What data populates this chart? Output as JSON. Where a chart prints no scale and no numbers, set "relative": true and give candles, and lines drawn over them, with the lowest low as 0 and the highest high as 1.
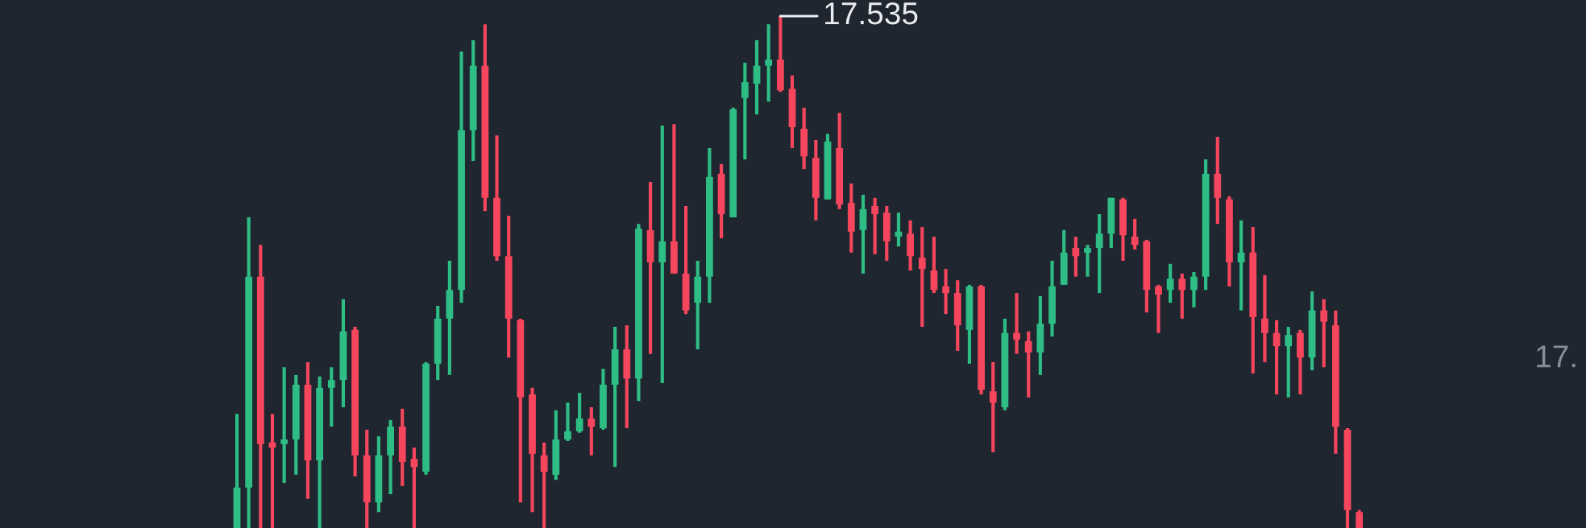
{
  "chart_data": {
    "type": "candlestick",
    "relative": true,
    "categories": [
      null,
      null,
      null,
      null,
      null,
      null,
      null,
      null,
      null,
      null,
      null,
      null,
      null,
      null,
      null,
      null,
      null,
      null,
      null,
      null,
      null,
      null,
      null,
      null,
      null,
      null,
      null,
      null,
      null,
      null,
      null,
      null,
      null,
      null,
      null,
      null,
      null,
      null,
      null,
      null,
      null,
      null,
      null,
      null,
      null,
      null,
      null,
      null,
      null,
      null,
      null,
      null,
      null,
      null,
      null,
      null,
      null,
      null,
      null,
      null,
      null,
      null,
      null,
      null,
      null,
      null,
      null,
      null,
      null,
      null,
      null,
      null,
      null,
      null,
      null,
      null,
      null,
      null,
      null,
      null,
      null,
      null,
      null,
      null,
      null,
      null,
      null,
      null,
      null,
      null,
      null,
      null,
      null,
      null,
      null,
      null
    ],
    "colors": [
      "#2ebd85",
      "#2ebd85",
      "#f6465d",
      "#f6465d",
      "#2ebd85",
      "#2ebd85",
      "#f6465d",
      "#2ebd85",
      "#2ebd85",
      "#2ebd85",
      "#f6465d",
      "#f6465d",
      "#2ebd85",
      "#2ebd85",
      "#f6465d",
      "#f6465d",
      "#2ebd85",
      "#2ebd85",
      "#2ebd85",
      "#2ebd85",
      "#2ebd85",
      "#f6465d",
      "#f6465d",
      "#f6465d",
      "#f6465d",
      "#f6465d",
      "#f6465d",
      "#2ebd85",
      "#2ebd85",
      "#2ebd85",
      "#f6465d",
      "#2ebd85",
      "#2ebd85",
      "#f6465d",
      "#2ebd85",
      "#f6465d",
      "#2ebd85",
      "#f6465d",
      "#f6465d",
      "#2ebd85",
      "#2ebd85",
      "#f6465d",
      "#2ebd85",
      "#2ebd85",
      "#2ebd85",
      "#2ebd85",
      "#f6465d",
      "#f6465d",
      "#f6465d",
      "#f6465d",
      "#2ebd85",
      "#f6465d",
      "#f6465d",
      "#2ebd85",
      "#f6465d",
      "#f6465d",
      "#2ebd85",
      "#f6465d",
      "#f6465d",
      "#f6465d",
      "#f6465d",
      "#f6465d",
      "#2ebd85",
      "#f6465d",
      "#f6465d",
      "#2ebd85",
      "#f6465d",
      "#f6465d",
      "#2ebd85",
      "#2ebd85",
      "#2ebd85",
      "#f6465d",
      "#2ebd85",
      "#2ebd85",
      "#2ebd85",
      "#f6465d",
      "#f6465d",
      "#f6465d",
      "#f6465d",
      "#2ebd85",
      "#f6465d",
      "#2ebd85",
      "#2ebd85",
      "#f6465d",
      "#f6465d",
      "#2ebd85",
      "#f6465d",
      "#f6465d",
      "#f6465d",
      "#2ebd85",
      "#f6465d",
      "#2ebd85",
      "#f6465d",
      "#f6465d",
      "#f6465d",
      "#f6465d"
    ],
    "ohlc": [
      [
        0,
        0.223,
        0,
        0.079
      ],
      [
        0.079,
        0.607,
        0,
        0.491
      ],
      [
        0.491,
        0.553,
        0,
        0.164
      ],
      [
        0.167,
        0.223,
        0,
        0.157
      ],
      [
        0.164,
        0.314,
        0.088,
        0.173
      ],
      [
        0.173,
        0.299,
        0.104,
        0.28
      ],
      [
        0.28,
        0.324,
        0.057,
        0.132
      ],
      [
        0.132,
        0.296,
        0,
        0.274
      ],
      [
        0.274,
        0.314,
        0.198,
        0.289
      ],
      [
        0.289,
        0.447,
        0.236,
        0.384
      ],
      [
        0.387,
        0.393,
        0.101,
        0.142
      ],
      [
        0.142,
        0.192,
        0,
        0.05
      ],
      [
        0.05,
        0.179,
        0.031,
        0.142
      ],
      [
        0.142,
        0.211,
        0.066,
        0.198
      ],
      [
        0.198,
        0.233,
        0.082,
        0.129
      ],
      [
        0.135,
        0.157,
        0,
        0.119
      ],
      [
        0.11,
        0.324,
        0.104,
        0.321
      ],
      [
        0.321,
        0.434,
        0.289,
        0.409
      ],
      [
        0.409,
        0.522,
        0.299,
        0.465
      ],
      [
        0.465,
        0.931,
        0.44,
        0.777
      ],
      [
        0.777,
        0.953,
        0.717,
        0.903
      ],
      [
        0.903,
        0.984,
        0.619,
        0.645
      ],
      [
        0.645,
        0.767,
        0.522,
        0.531
      ],
      [
        0.531,
        0.61,
        0.333,
        0.409
      ],
      [
        0.406,
        0.409,
        0.05,
        0.255
      ],
      [
        0.261,
        0.274,
        0.031,
        0.145
      ],
      [
        0.142,
        0.167,
        0,
        0.11
      ],
      [
        0.104,
        0.23,
        0.094,
        0.173
      ],
      [
        0.173,
        0.245,
        0.17,
        0.189
      ],
      [
        0.189,
        0.264,
        0.186,
        0.214
      ],
      [
        0.214,
        0.236,
        0.142,
        0.198
      ],
      [
        0.195,
        0.311,
        0.192,
        0.28
      ],
      [
        0.28,
        0.393,
        0.119,
        0.349
      ],
      [
        0.349,
        0.396,
        0.195,
        0.292
      ],
      [
        0.292,
        0.594,
        0.248,
        0.585
      ],
      [
        0.582,
        0.676,
        0.34,
        0.519
      ],
      [
        0.519,
        0.786,
        0.283,
        0.56
      ],
      [
        0.56,
        0.789,
        0.497,
        0.497
      ],
      [
        0.497,
        0.629,
        0.418,
        0.425
      ],
      [
        0.44,
        0.522,
        0.349,
        0.491
      ],
      [
        0.491,
        0.742,
        0.44,
        0.686
      ],
      [
        0.692,
        0.711,
        0.566,
        0.613
      ],
      [
        0.607,
        0.821,
        0.607,
        0.818
      ],
      [
        0.84,
        0.909,
        0.72,
        0.871
      ],
      [
        0.868,
        0.953,
        0.808,
        0.903
      ],
      [
        0.903,
        0.984,
        0.833,
        0.915
      ],
      [
        0.915,
        1,
        0.852,
        0.855
      ],
      [
        0.858,
        0.884,
        0.742,
        0.783
      ],
      [
        0.78,
        0.821,
        0.701,
        0.726
      ],
      [
        0.723,
        0.758,
        0.601,
        0.645
      ],
      [
        0.642,
        0.77,
        0.642,
        0.755
      ],
      [
        0.742,
        0.811,
        0.623,
        0.632
      ],
      [
        0.635,
        0.673,
        0.538,
        0.579
      ],
      [
        0.582,
        0.651,
        0.497,
        0.623
      ],
      [
        0.629,
        0.645,
        0.535,
        0.613
      ],
      [
        0.616,
        0.629,
        0.522,
        0.56
      ],
      [
        0.569,
        0.616,
        0.55,
        0.579
      ],
      [
        0.575,
        0.601,
        0.503,
        0.531
      ],
      [
        0.528,
        0.588,
        0.393,
        0.506
      ],
      [
        0.503,
        0.569,
        0.459,
        0.465
      ],
      [
        0.472,
        0.506,
        0.418,
        0.459
      ],
      [
        0.459,
        0.484,
        0.346,
        0.396
      ],
      [
        0.387,
        0.475,
        0.321,
        0.472
      ],
      [
        0.472,
        0.475,
        0.261,
        0.27
      ],
      [
        0.267,
        0.324,
        0.148,
        0.245
      ],
      [
        0.236,
        0.409,
        0.23,
        0.381
      ],
      [
        0.381,
        0.459,
        0.34,
        0.368
      ],
      [
        0.365,
        0.384,
        0.255,
        0.343
      ],
      [
        0.343,
        0.453,
        0.299,
        0.399
      ],
      [
        0.399,
        0.522,
        0.374,
        0.472
      ],
      [
        0.475,
        0.582,
        0.475,
        0.538
      ],
      [
        0.547,
        0.569,
        0.491,
        0.531
      ],
      [
        0.538,
        0.553,
        0.491,
        0.547
      ],
      [
        0.547,
        0.613,
        0.459,
        0.575
      ],
      [
        0.575,
        0.645,
        0.547,
        0.645
      ],
      [
        0.642,
        0.645,
        0.522,
        0.572
      ],
      [
        0.569,
        0.604,
        0.544,
        0.553
      ],
      [
        0.56,
        0.563,
        0.421,
        0.465
      ],
      [
        0.472,
        0.475,
        0.381,
        0.456
      ],
      [
        0.465,
        0.516,
        0.44,
        0.487
      ],
      [
        0.487,
        0.497,
        0.409,
        0.465
      ],
      [
        0.465,
        0.5,
        0.431,
        0.491
      ],
      [
        0.491,
        0.72,
        0.465,
        0.692
      ],
      [
        0.692,
        0.764,
        0.594,
        0.645
      ],
      [
        0.642,
        0.648,
        0.472,
        0.519
      ],
      [
        0.519,
        0.601,
        0.425,
        0.538
      ],
      [
        0.538,
        0.588,
        0.302,
        0.412
      ],
      [
        0.409,
        0.494,
        0.324,
        0.381
      ],
      [
        0.381,
        0.406,
        0.261,
        0.355
      ],
      [
        0.355,
        0.393,
        0.255,
        0.377
      ],
      [
        0.381,
        0.387,
        0.261,
        0.333
      ],
      [
        0.333,
        0.462,
        0.308,
        0.425
      ],
      [
        0.425,
        0.447,
        0.314,
        0.403
      ],
      [
        0.396,
        0.425,
        0.145,
        0.198
      ],
      [
        0.192,
        0.195,
        0,
        0.035
      ],
      [
        0.031,
        0.035,
        0,
        0
      ]
    ],
    "annotations": [
      "17.535",
      "17."
    ]
  }
}
